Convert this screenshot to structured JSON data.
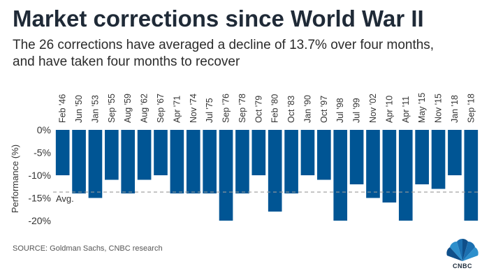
{
  "title": "Market corrections since World War II",
  "subtitle_line1": "The 26 corrections have averaged a decline of 13.7% over four months,",
  "subtitle_line2": "and have taken four months to recover",
  "source": "SOURCE: Goldman Sachs, CNBC research",
  "logo_text": "CNBC",
  "colors": {
    "bar": "#005594",
    "avg_line": "#9a9a9a",
    "title": "#1f2a37"
  },
  "chart_data": {
    "type": "bar",
    "categories": [
      "Feb '46",
      "Jun '50",
      "Jan '53",
      "Sep '55",
      "Aug '59",
      "Aug '62",
      "Sep '67",
      "Apr '71",
      "Nov '74",
      "Jul '75",
      "Sep '76",
      "Sep '78",
      "Oct '79",
      "Feb '80",
      "Oct '83",
      "Jan '90",
      "Oct '97",
      "Jul '98",
      "Jul '99",
      "Nov '02",
      "Apr '10",
      "Apr '11",
      "May '15",
      "Nov '15",
      "Jan '18",
      "Sep '18"
    ],
    "values": [
      -10,
      -14,
      -15,
      -11,
      -14,
      -11,
      -10,
      -14,
      -14,
      -14,
      -20,
      -14,
      -10,
      -18,
      -14,
      -10,
      -11,
      -20,
      -12,
      -15,
      -16,
      -20,
      -12,
      -13,
      -10,
      -20
    ],
    "ylabel": "Performance (%)",
    "yticks": [
      "0%",
      "-5%",
      "-10%",
      "-15%",
      "-20%"
    ],
    "ytick_values": [
      0,
      -5,
      -10,
      -15,
      -20
    ],
    "ylim": [
      -20.5,
      0
    ],
    "average": -13.7,
    "average_label": "Avg."
  }
}
